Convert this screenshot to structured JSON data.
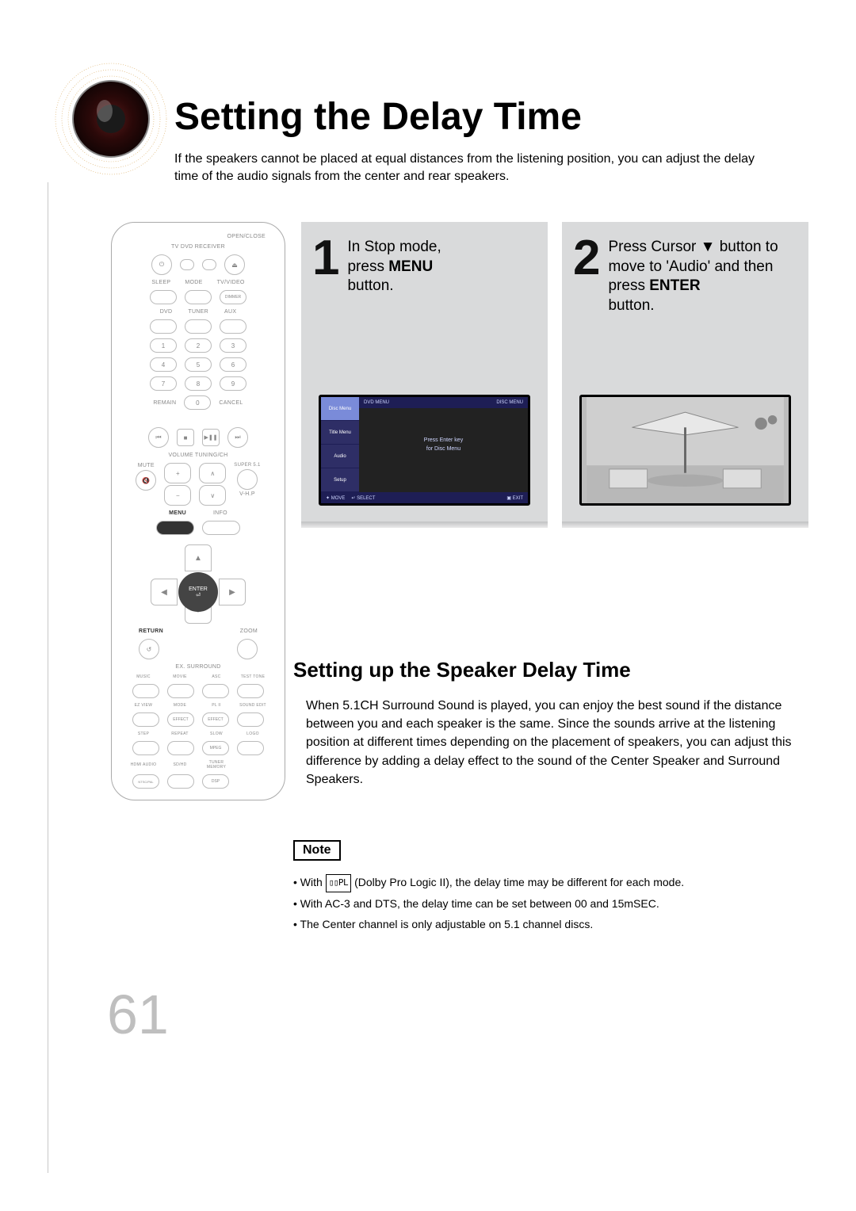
{
  "page": {
    "title": "Setting the Delay Time",
    "intro": "If the speakers cannot be placed at equal distances from the listening position, you can adjust the delay time of the audio signals from the center and rear speakers.",
    "page_number": "61",
    "colors": {
      "step_bg": "#d9dadb",
      "page_num": "#bfbfbf",
      "tv_dark": "#1e1e55",
      "tv_panel": "#2e2e66",
      "tv_sel": "#7a8bd9"
    }
  },
  "steps": [
    {
      "num": "1",
      "lines_pre": "In Stop mode,\npress ",
      "bold": "MENU",
      "lines_post": "\nbutton.",
      "screen": {
        "header_left": "DVD MENU",
        "header_right": "DISC MENU",
        "sidebar": [
          "Disc Menu",
          "Title Menu",
          "Audio",
          "Setup"
        ],
        "selected_index": 0,
        "body_line1": "Press Enter key",
        "body_line2": "for Disc Menu",
        "footer": [
          "✦ MOVE",
          "↵ SELECT",
          "▣ EXIT"
        ]
      }
    },
    {
      "num": "2",
      "lines_pre": "Press Cursor ▼ button to move to 'Audio' and then press ",
      "bold": "ENTER",
      "lines_post": "\nbutton."
    }
  ],
  "section2": {
    "heading": "Setting up the Speaker Delay Time",
    "body": "When 5.1CH Surround Sound is played, you can enjoy the best sound if the distance between you and each speaker is the same. Since the sounds arrive at the listening position at different times depending on the placement of speakers, you can adjust this difference by adding a delay effect to the sound of the Center Speaker and Surround Speakers."
  },
  "note": {
    "label": "Note",
    "items": [
      {
        "pre": "With ",
        "logo": "▯▯PL",
        "post": " (Dolby Pro Logic II), the delay time may be different for each mode."
      },
      {
        "pre": "With AC-3 and DTS, the delay time can be set between 00 and 15mSEC.",
        "logo": null,
        "post": ""
      },
      {
        "pre": "The Center channel is only adjustable on 5.1 channel discs.",
        "logo": null,
        "post": ""
      }
    ]
  },
  "remote": {
    "top_label": "OPEN/CLOSE",
    "row_tv": "TV    DVD RECEIVER",
    "row1": [
      "SLEEP",
      "MODE",
      "TV/VIDEO"
    ],
    "row1b": "DIMMER",
    "row2": [
      "DVD",
      "TUNER",
      "AUX"
    ],
    "keypad": [
      [
        "1",
        "2",
        "3"
      ],
      [
        "4",
        "5",
        "6"
      ],
      [
        "7",
        "8",
        "9"
      ]
    ],
    "row3": [
      "REMAIN",
      "0",
      "CANCEL"
    ],
    "transport": [
      "⏮",
      "■",
      "▶❚❚",
      "⏭"
    ],
    "vol_label": "VOLUME   TUNING/CH",
    "side_left": "MUTE",
    "side_right": "SUPER 5.1",
    "vhp": "V-H.P",
    "menu_label": "MENU",
    "info_label": "INFO",
    "enter": "ENTER",
    "return_label": "RETURN",
    "zoom_label": "ZOOM",
    "ex_label": "EX. SURROUND",
    "grid1": [
      "MUSIC",
      "MOVIE",
      "ASC",
      "TEST TONE"
    ],
    "grid2": [
      "EZ VIEW",
      "MODE",
      "PL II",
      "SOUND EDIT"
    ],
    "grid2b": "EFFECT",
    "grid3": [
      "STEP",
      "REPEAT",
      "SLOW",
      "LOGO"
    ],
    "grid3b": "MPEG",
    "grid4": [
      "HDMI AUDIO",
      "SD/HD",
      "TUNER MEMORY",
      ""
    ],
    "grid4b": [
      "NTSC/PAL",
      "",
      "DSP",
      ""
    ]
  }
}
